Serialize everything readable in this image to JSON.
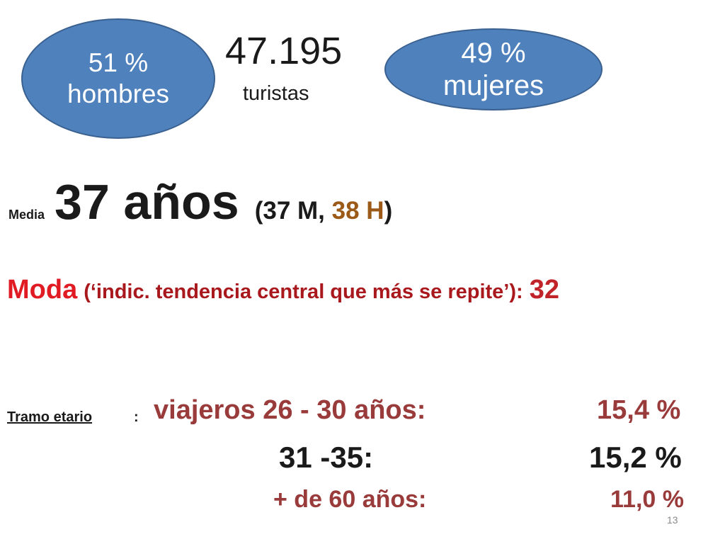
{
  "men": {
    "percent": "51 %",
    "label": "hombres"
  },
  "total": {
    "number": "47.195",
    "label": "turistas"
  },
  "women": {
    "percent": "49 %",
    "label": "mujeres"
  },
  "media": {
    "small": "Media",
    "big": "37 años",
    "detail_open": "(37 M, ",
    "detail_h": "38 H",
    "detail_close": ")"
  },
  "moda": {
    "word": "Moda",
    "note": "(‘indic. tendencia central que más se repite’):",
    "value": "32"
  },
  "tramo": {
    "label": "Tramo etario",
    "colon": ":",
    "rows": [
      {
        "label": "viajeros 26 - 30 años:",
        "value": "15,4 %"
      },
      {
        "label": "31 -35:",
        "value": "15,2 %"
      },
      {
        "label": "+ de 60 años:",
        "value": "11,0 %"
      }
    ]
  },
  "slide_number": "13",
  "colors": {
    "ellipse_fill": "#4f81bd",
    "moda_red": "#e01b24",
    "range_brown": "#9a3b3b",
    "h_brown": "#9c5a18"
  }
}
